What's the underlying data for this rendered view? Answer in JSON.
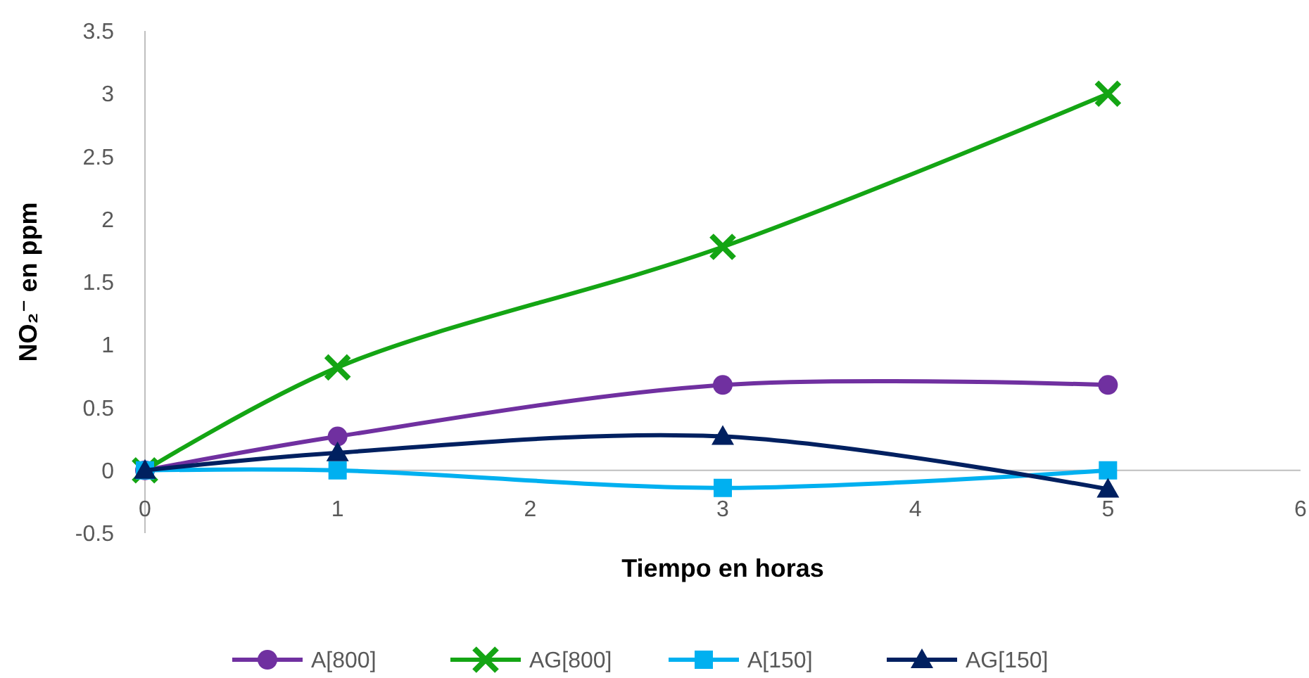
{
  "chart_data": {
    "type": "line",
    "xlabel": "Tiempo en horas",
    "ylabel": "NO₂⁻ en ppm",
    "x": [
      0,
      1,
      3,
      5
    ],
    "series": [
      {
        "name": "A[800]",
        "color": "#7030a0",
        "marker": "circle",
        "values": [
          0,
          0.27,
          0.68,
          0.68
        ]
      },
      {
        "name": "AG[800]",
        "color": "#14a514",
        "marker": "cross",
        "values": [
          0,
          0.82,
          1.78,
          3.0
        ]
      },
      {
        "name": "A[150]",
        "color": "#00b0f0",
        "marker": "square",
        "values": [
          0,
          0,
          -0.14,
          0
        ]
      },
      {
        "name": "AG[150]",
        "color": "#002060",
        "marker": "triangle",
        "values": [
          0,
          0.14,
          0.27,
          -0.15
        ]
      }
    ],
    "xlim": [
      0,
      6
    ],
    "xticks": [
      0,
      1,
      2,
      3,
      4,
      5,
      6
    ],
    "ylim": [
      -0.5,
      3.5
    ],
    "yticks": [
      -0.5,
      0,
      0.5,
      1,
      1.5,
      2,
      2.5,
      3,
      3.5
    ],
    "grid": false,
    "legend": "bottom"
  }
}
